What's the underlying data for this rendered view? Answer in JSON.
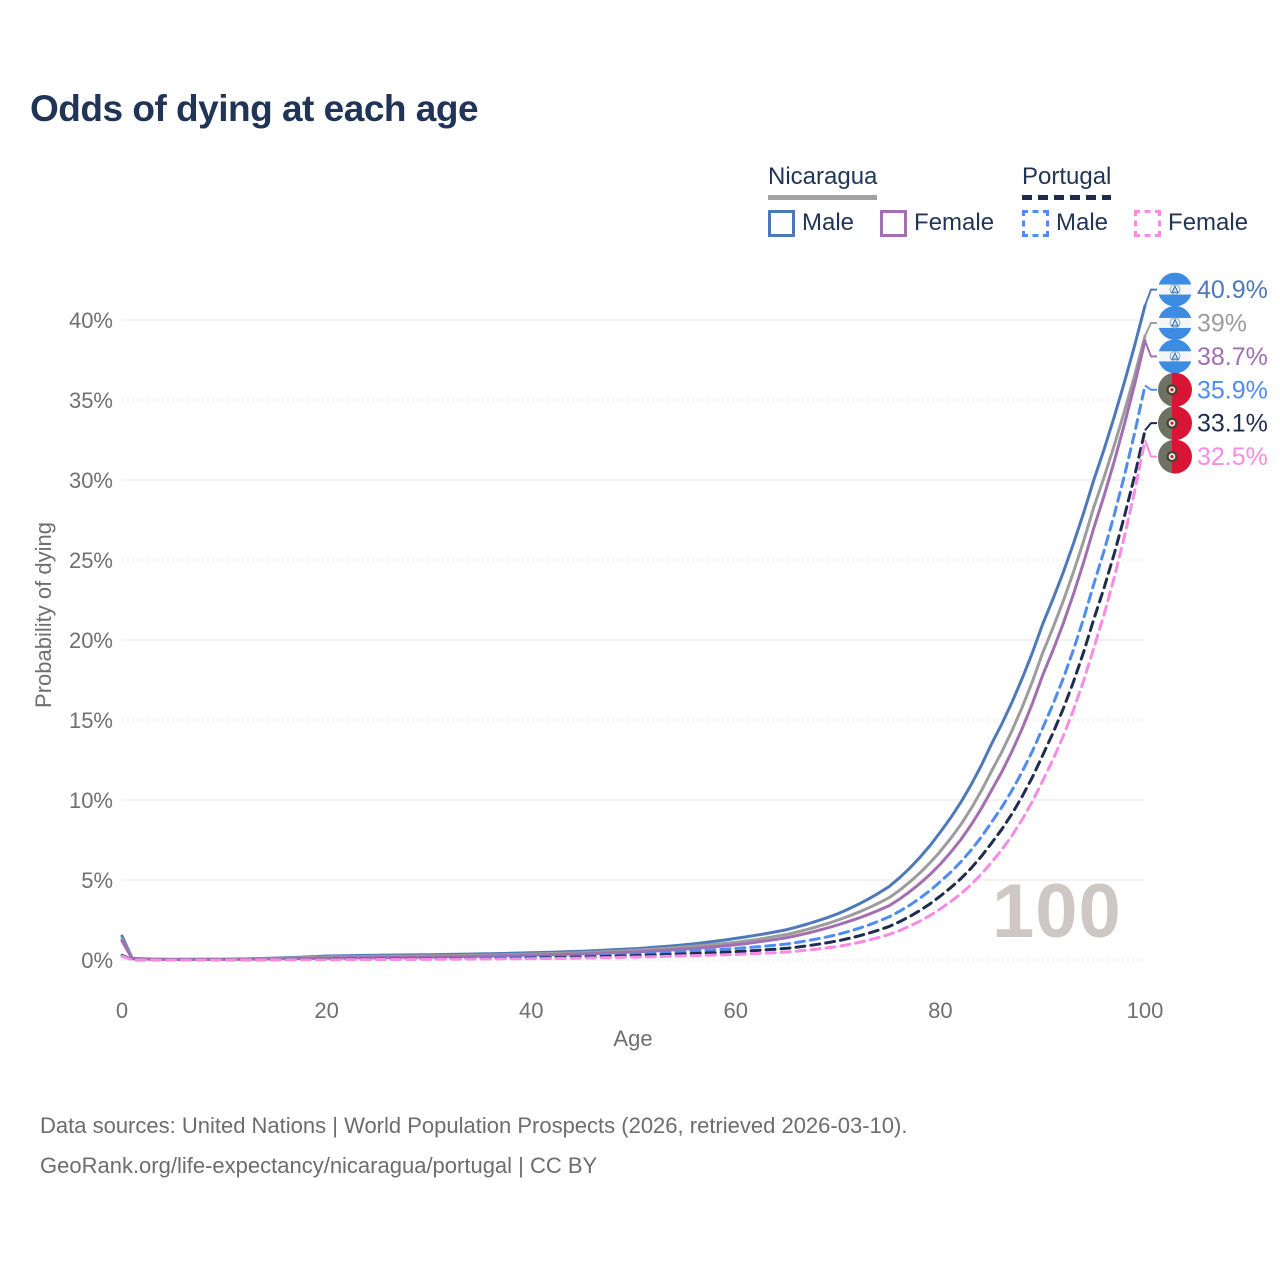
{
  "page": {
    "title": "Odds of dying at each age",
    "watermark_age": "100",
    "footer": {
      "line1": "Data sources: United Nations | World Population Prospects (2026, retrieved 2026-03-10).",
      "line2": "GeoRank.org/life-expectancy/nicaragua/portugal | CC BY"
    }
  },
  "legend": {
    "groups": [
      {
        "country": "Nicaragua",
        "line_style": "solid",
        "underline_color": "#a3a3a3",
        "items": [
          {
            "label": "Male",
            "color": "#4d79ba"
          },
          {
            "label": "Female",
            "color": "#a26fb0"
          }
        ]
      },
      {
        "country": "Portugal",
        "line_style": "dashed",
        "underline_color": "#1f2c4d",
        "items": [
          {
            "label": "Male",
            "color": "#4e8cf0"
          },
          {
            "label": "Female",
            "color": "#f78be6"
          }
        ]
      }
    ]
  },
  "chart_data": {
    "type": "line",
    "title": "Odds of dying at each age",
    "xlabel": "Age",
    "ylabel": "Probability of dying",
    "x_ticks": [
      0,
      20,
      40,
      60,
      80,
      100
    ],
    "y_ticks_percent": [
      0,
      5,
      10,
      15,
      20,
      25,
      30,
      35,
      40
    ],
    "y_tick_suffix": "%",
    "xlim": [
      0,
      100
    ],
    "ylim_percent": [
      0,
      42
    ],
    "grid": true,
    "legend_position": "top-right",
    "age_counter": "100",
    "ages": [
      0,
      1,
      5,
      10,
      15,
      20,
      25,
      30,
      35,
      40,
      45,
      50,
      55,
      60,
      65,
      70,
      75,
      80,
      85,
      90,
      95,
      100
    ],
    "series": [
      {
        "id": "nicaragua-male",
        "country": "Nicaragua",
        "sex": "Male",
        "style": "solid",
        "color": "#4d79ba",
        "flag": "nicaragua",
        "end_label": "40.9%",
        "end_value": 40.9,
        "values_percent": [
          1.5,
          0.1,
          0.04,
          0.05,
          0.12,
          0.25,
          0.3,
          0.33,
          0.38,
          0.45,
          0.55,
          0.7,
          0.95,
          1.35,
          1.9,
          2.9,
          4.6,
          8.0,
          13.5,
          21.0,
          30.0,
          40.9
        ]
      },
      {
        "id": "nicaragua-all",
        "country": "Nicaragua",
        "sex": "All",
        "style": "solid",
        "color": "#9c9c9c",
        "flag": "nicaragua",
        "end_label": "39%",
        "end_value": 39.0,
        "values_percent": [
          1.3,
          0.09,
          0.035,
          0.045,
          0.1,
          0.19,
          0.23,
          0.26,
          0.3,
          0.37,
          0.46,
          0.6,
          0.82,
          1.1,
          1.6,
          2.5,
          3.9,
          6.8,
          11.8,
          19.2,
          28.3,
          39.0
        ]
      },
      {
        "id": "nicaragua-female",
        "country": "Nicaragua",
        "sex": "Female",
        "style": "solid",
        "color": "#a26fb0",
        "flag": "nicaragua",
        "end_label": "38.7%",
        "end_value": 38.7,
        "values_percent": [
          1.2,
          0.08,
          0.03,
          0.04,
          0.07,
          0.12,
          0.15,
          0.18,
          0.23,
          0.3,
          0.38,
          0.5,
          0.68,
          0.95,
          1.4,
          2.2,
          3.4,
          6.0,
          10.6,
          17.8,
          27.0,
          38.7
        ]
      },
      {
        "id": "portugal-male",
        "country": "Portugal",
        "sex": "Male",
        "style": "dashed",
        "color": "#4e8cf0",
        "flag": "portugal",
        "end_label": "35.9%",
        "end_value": 35.9,
        "values_percent": [
          0.3,
          0.02,
          0.01,
          0.01,
          0.03,
          0.05,
          0.06,
          0.08,
          0.11,
          0.16,
          0.24,
          0.37,
          0.52,
          0.72,
          1.0,
          1.6,
          2.7,
          4.9,
          8.6,
          14.5,
          23.5,
          35.9
        ]
      },
      {
        "id": "portugal-all",
        "country": "Portugal",
        "sex": "All",
        "style": "dashed",
        "color": "#1f2c4d",
        "flag": "portugal",
        "end_label": "33.1%",
        "end_value": 33.1,
        "values_percent": [
          0.27,
          0.02,
          0.01,
          0.01,
          0.02,
          0.04,
          0.05,
          0.06,
          0.08,
          0.12,
          0.18,
          0.27,
          0.38,
          0.52,
          0.73,
          1.2,
          2.1,
          4.0,
          7.3,
          12.8,
          21.3,
          33.1
        ]
      },
      {
        "id": "portugal-female",
        "country": "Portugal",
        "sex": "Female",
        "style": "dashed",
        "color": "#f78be6",
        "flag": "portugal",
        "end_label": "32.5%",
        "end_value": 32.5,
        "values_percent": [
          0.24,
          0.015,
          0.008,
          0.009,
          0.015,
          0.02,
          0.03,
          0.04,
          0.06,
          0.08,
          0.12,
          0.18,
          0.26,
          0.35,
          0.5,
          0.85,
          1.6,
          3.2,
          6.1,
          11.2,
          19.5,
          32.5
        ]
      }
    ]
  }
}
